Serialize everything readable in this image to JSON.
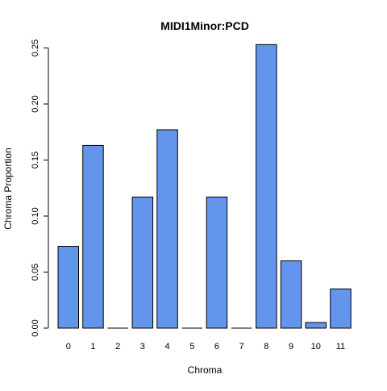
{
  "chart_data": {
    "type": "bar",
    "title": "MIDI1Minor:PCD",
    "xlabel": "Chroma",
    "ylabel": "Chroma Proportion",
    "categories": [
      "0",
      "1",
      "2",
      "3",
      "4",
      "5",
      "6",
      "7",
      "8",
      "9",
      "10",
      "11"
    ],
    "values": [
      0.073,
      0.163,
      0.0,
      0.117,
      0.177,
      0.0,
      0.117,
      0.0,
      0.253,
      0.06,
      0.005,
      0.035
    ],
    "ylim": [
      0,
      0.25
    ],
    "yticks": [
      "0.00",
      "0.05",
      "0.10",
      "0.15",
      "0.20",
      "0.25"
    ],
    "grid": false,
    "bar_color": "#6495ED",
    "bar_border_color": "#000000"
  }
}
